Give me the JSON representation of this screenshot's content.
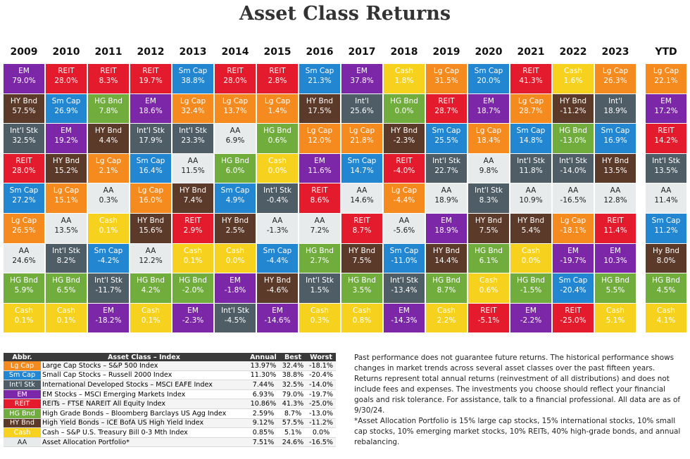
{
  "title": "Asset Class Returns",
  "colors": {
    "EM": {
      "bg": "#7b27a7",
      "fg": "#ffffff"
    },
    "Lg Cap": {
      "bg": "#f58a1f",
      "fg": "#ffffff"
    },
    "Sm Cap": {
      "bg": "#2386d1",
      "fg": "#ffffff"
    },
    "Int'l Stk": {
      "bg": "#4e5d66",
      "fg": "#ffffff"
    },
    "REIT": {
      "bg": "#e31b2d",
      "fg": "#ffffff"
    },
    "HG Bnd": {
      "bg": "#70ad3d",
      "fg": "#ffffff"
    },
    "HY Bnd": {
      "bg": "#5b3a2a",
      "fg": "#ffffff"
    },
    "Cash": {
      "bg": "#f6d21f",
      "fg": "#ffffff"
    },
    "AA": {
      "bg": "#e8ebec",
      "fg": "#222222"
    }
  },
  "chart_data": {
    "type": "table",
    "title": "Asset Class Returns",
    "columns": [
      "2009",
      "2010",
      "2011",
      "2012",
      "2013",
      "2014",
      "2015",
      "2016",
      "2017",
      "2018",
      "2019",
      "2020",
      "2021",
      "2022",
      "2023",
      "YTD"
    ],
    "grid": [
      [
        {
          "c": "EM",
          "v": "79.0%"
        },
        {
          "c": "HY Bnd",
          "v": "57.5%"
        },
        {
          "c": "Int'l Stk",
          "v": "32.5%"
        },
        {
          "c": "REIT",
          "v": "28.0%"
        },
        {
          "c": "Sm Cap",
          "v": "27.2%"
        },
        {
          "c": "Lg Cap",
          "v": "26.5%"
        },
        {
          "c": "AA",
          "v": "24.6%"
        },
        {
          "c": "HG Bnd",
          "v": "5.9%"
        },
        {
          "c": "Cash",
          "v": "0.1%"
        }
      ],
      [
        {
          "c": "REIT",
          "v": "28.0%"
        },
        {
          "c": "Sm Cap",
          "v": "26.9%"
        },
        {
          "c": "EM",
          "v": "19.2%"
        },
        {
          "c": "HY Bnd",
          "v": "15.2%"
        },
        {
          "c": "Lg Cap",
          "v": "15.1%"
        },
        {
          "c": "AA",
          "v": "13.5%"
        },
        {
          "c": "Int'l Stk",
          "v": "8.2%"
        },
        {
          "c": "HG Bnd",
          "v": "6.5%"
        },
        {
          "c": "Cash",
          "v": "0.1%"
        }
      ],
      [
        {
          "c": "REIT",
          "v": "8.3%"
        },
        {
          "c": "HG Bnd",
          "v": "7.8%"
        },
        {
          "c": "HY Bnd",
          "v": "4.4%"
        },
        {
          "c": "Lg Cap",
          "v": "2.1%"
        },
        {
          "c": "AA",
          "v": "0.3%"
        },
        {
          "c": "Cash",
          "v": "0.1%"
        },
        {
          "c": "Sm Cap",
          "v": "-4.2%"
        },
        {
          "c": "Int'l Stk",
          "v": "-11.7%"
        },
        {
          "c": "EM",
          "v": "-18.2%"
        }
      ],
      [
        {
          "c": "REIT",
          "v": "19.7%"
        },
        {
          "c": "EM",
          "v": "18.6%"
        },
        {
          "c": "Int'l Stk",
          "v": "17.9%"
        },
        {
          "c": "Sm Cap",
          "v": "16.4%"
        },
        {
          "c": "Lg Cap",
          "v": "16.0%"
        },
        {
          "c": "HY Bnd",
          "v": "15.6%"
        },
        {
          "c": "AA",
          "v": "12.2%"
        },
        {
          "c": "HG Bnd",
          "v": "4.2%"
        },
        {
          "c": "Cash",
          "v": "0.1%"
        }
      ],
      [
        {
          "c": "Sm Cap",
          "v": "38.8%"
        },
        {
          "c": "Lg Cap",
          "v": "32.4%"
        },
        {
          "c": "Int'l Stk",
          "v": "23.3%"
        },
        {
          "c": "AA",
          "v": "11.5%"
        },
        {
          "c": "HY Bnd",
          "v": "7.4%"
        },
        {
          "c": "REIT",
          "v": "2.9%"
        },
        {
          "c": "Cash",
          "v": "0.1%"
        },
        {
          "c": "HG Bnd",
          "v": "-2.0%"
        },
        {
          "c": "EM",
          "v": "-2.3%"
        }
      ],
      [
        {
          "c": "REIT",
          "v": "28.0%"
        },
        {
          "c": "Lg Cap",
          "v": "13.7%"
        },
        {
          "c": "AA",
          "v": "6.9%"
        },
        {
          "c": "HG Bnd",
          "v": "6.0%"
        },
        {
          "c": "Sm Cap",
          "v": "4.9%"
        },
        {
          "c": "HY Bnd",
          "v": "2.5%"
        },
        {
          "c": "Cash",
          "v": "0.0%"
        },
        {
          "c": "EM",
          "v": "-1.8%"
        },
        {
          "c": "Int'l Stk",
          "v": "-4.5%"
        }
      ],
      [
        {
          "c": "REIT",
          "v": "2.8%"
        },
        {
          "c": "Lg Cap",
          "v": "1.4%"
        },
        {
          "c": "HG Bnd",
          "v": "0.6%"
        },
        {
          "c": "Cash",
          "v": "0.0%"
        },
        {
          "c": "Int'l Stk",
          "v": "-0.4%"
        },
        {
          "c": "AA",
          "v": "-1.3%"
        },
        {
          "c": "Sm Cap",
          "v": "-4.4%"
        },
        {
          "c": "HY Bnd",
          "v": "-4.6%"
        },
        {
          "c": "EM",
          "v": "-14.6%"
        }
      ],
      [
        {
          "c": "Sm Cap",
          "v": "21.3%"
        },
        {
          "c": "HY Bnd",
          "v": "17.5%"
        },
        {
          "c": "Lg Cap",
          "v": "12.0%"
        },
        {
          "c": "EM",
          "v": "11.6%"
        },
        {
          "c": "REIT",
          "v": "8.6%"
        },
        {
          "c": "AA",
          "v": "7.2%"
        },
        {
          "c": "HG Bnd",
          "v": "2.7%"
        },
        {
          "c": "Int'l Stk",
          "v": "1.5%"
        },
        {
          "c": "Cash",
          "v": "0.3%"
        }
      ],
      [
        {
          "c": "EM",
          "v": "37.8%"
        },
        {
          "c": "Int'l",
          "v": "25.6%"
        },
        {
          "c": "Lg Cap",
          "v": "21.8%"
        },
        {
          "c": "Sm Cap",
          "v": "14.7%"
        },
        {
          "c": "AA",
          "v": "14.6%"
        },
        {
          "c": "REIT",
          "v": "8.7%"
        },
        {
          "c": "HY Bnd",
          "v": "7.5%"
        },
        {
          "c": "HG Bnd",
          "v": "3.5%"
        },
        {
          "c": "Cash",
          "v": "0.8%"
        }
      ],
      [
        {
          "c": "Cash",
          "v": "1.8%"
        },
        {
          "c": "HG Bnd",
          "v": "0.0%"
        },
        {
          "c": "HY Bnd",
          "v": "-2.3%"
        },
        {
          "c": "REIT",
          "v": "-4.0%"
        },
        {
          "c": "Lg Cap",
          "v": "-4.4%"
        },
        {
          "c": "AA",
          "v": "-5.6%"
        },
        {
          "c": "Sm Cap",
          "v": "-11.0%"
        },
        {
          "c": "Int'l Stk",
          "v": "-13.4%"
        },
        {
          "c": "EM",
          "v": "-14.3%"
        }
      ],
      [
        {
          "c": "Lg Cap",
          "v": "31.5%"
        },
        {
          "c": "REIT",
          "v": "28.7%"
        },
        {
          "c": "Sm Cap",
          "v": "25.5%"
        },
        {
          "c": "Int'l Stk",
          "v": "22.7%"
        },
        {
          "c": "AA",
          "v": "18.9%"
        },
        {
          "c": "EM",
          "v": "18.9%"
        },
        {
          "c": "HY Bnd",
          "v": "14.4%"
        },
        {
          "c": "HG Bnd",
          "v": "8.7%"
        },
        {
          "c": "Cash",
          "v": "2.2%"
        }
      ],
      [
        {
          "c": "Sm Cap",
          "v": "20.0%"
        },
        {
          "c": "EM",
          "v": "18.7%"
        },
        {
          "c": "Lg Cap",
          "v": "18.4%"
        },
        {
          "c": "AA",
          "v": "9.8%"
        },
        {
          "c": "Int'l Stk",
          "v": "8.3%"
        },
        {
          "c": "HY Bnd",
          "v": "7.5%"
        },
        {
          "c": "HG Bnd",
          "v": "6.1%"
        },
        {
          "c": "Cash",
          "v": "0.6%"
        },
        {
          "c": "REIT",
          "v": "-5.1%"
        }
      ],
      [
        {
          "c": "REIT",
          "v": "41.3%"
        },
        {
          "c": "Lg Cap",
          "v": "28.7%"
        },
        {
          "c": "Sm Cap",
          "v": "14.8%"
        },
        {
          "c": "Int'l Stk",
          "v": "11.8%"
        },
        {
          "c": "AA",
          "v": "10.9%"
        },
        {
          "c": "HY Bnd",
          "v": "5.4%"
        },
        {
          "c": "Cash",
          "v": "0.0%"
        },
        {
          "c": "HG Bnd",
          "v": "-1.5%"
        },
        {
          "c": "EM",
          "v": "-2.2%"
        }
      ],
      [
        {
          "c": "Cash",
          "v": "1.6%"
        },
        {
          "c": "HY Bnd",
          "v": "-11.2%"
        },
        {
          "c": "HG Bnd",
          "v": "-13.0%"
        },
        {
          "c": "Int'l Stk",
          "v": "-14.0%"
        },
        {
          "c": "AA",
          "v": "-16.5%"
        },
        {
          "c": "Lg Cap",
          "v": "-18.1%"
        },
        {
          "c": "EM",
          "v": "-19.7%"
        },
        {
          "c": "Sm Cap",
          "v": "-20.4%"
        },
        {
          "c": "REIT",
          "v": "-25.0%"
        }
      ],
      [
        {
          "c": "Lg Cap",
          "v": "26.3%"
        },
        {
          "c": "Int'l",
          "v": "18.9%"
        },
        {
          "c": "Sm Cap",
          "v": "16.9%"
        },
        {
          "c": "HY Bnd",
          "v": "13.5%"
        },
        {
          "c": "AA",
          "v": "12.8%"
        },
        {
          "c": "REIT",
          "v": "11.4%"
        },
        {
          "c": "EM",
          "v": "10.3%"
        },
        {
          "c": "HG Bnd",
          "v": "5.5%"
        },
        {
          "c": "Cash",
          "v": "5.1%"
        }
      ],
      [
        {
          "c": "Lg Cap",
          "v": "22.1%"
        },
        {
          "c": "EM",
          "v": "17.2%"
        },
        {
          "c": "REIT",
          "v": "14.2%"
        },
        {
          "c": "Int'l Stk",
          "v": "13.5%"
        },
        {
          "c": "AA",
          "v": "11.4%"
        },
        {
          "c": "Sm Cap",
          "v": "11.2%"
        },
        {
          "c": "Hy Bnd",
          "v": "8.0%"
        },
        {
          "c": "HG Bnd",
          "v": "4.5%"
        },
        {
          "c": "Cash",
          "v": "4.1%"
        }
      ]
    ]
  },
  "legend_table": {
    "headers": [
      "Abbr.",
      "Asset Class – Index",
      "Annual",
      "Best",
      "Worst"
    ],
    "rows": [
      {
        "abbr": "Lg Cap",
        "name": "Large Cap Stocks – S&P 500 Index",
        "annual": "13.97%",
        "best": "32.4%",
        "worst": "-18.1%"
      },
      {
        "abbr": "Sm Cap",
        "name": "Small Cap Stocks – Russell 2000 Index",
        "annual": "11.30%",
        "best": "38.8%",
        "worst": "-20.4%"
      },
      {
        "abbr": "Int'l Stk",
        "name": "International Developed Stocks – MSCI EAFE Index",
        "annual": "7.44%",
        "best": "32.5%",
        "worst": "-14.0%"
      },
      {
        "abbr": "EM",
        "name": "EM Stocks – MSCI Emerging Markets Index",
        "annual": "6.93%",
        "best": "79.0%",
        "worst": "-19.7%"
      },
      {
        "abbr": "REIT",
        "name": "REITs – FTSE NAREIT All Equity Index",
        "annual": "10.86%",
        "best": "41.3%",
        "worst": "-25.0%"
      },
      {
        "abbr": "HG Bnd",
        "name": "High Grade Bonds – Bloomberg Barclays US Agg Index",
        "annual": "2.59%",
        "best": "8.7%",
        "worst": "-13.0%"
      },
      {
        "abbr": "HY Bnd",
        "name": "High Yield Bonds – ICE BofA US High Yield Index",
        "annual": "9.12%",
        "best": "57.5%",
        "worst": "-11.2%"
      },
      {
        "abbr": "Cash",
        "name": "Cash – S&P U.S. Treasury Bill 0-3 Mth Index",
        "annual": "0.85%",
        "best": "5.1%",
        "worst": "0.0%"
      },
      {
        "abbr": "AA",
        "name": "Asset Allocation Portfolio*",
        "annual": "7.51%",
        "best": "24.6%",
        "worst": "-16.5%"
      }
    ]
  },
  "notes": {
    "disclaimer": "Past performance does not guarantee future returns. The historical performance shows changes in market trends across several asset classes over the past fifteen years. Returns represent total annual returns (reinvestment of all distributions) and does not include fees and expenses. The investments you choose should reflect your financial goals and risk tolerance. For assistance, talk to a financial professional. All data are as of 9/30/24.",
    "footnote": "*Asset Allocation Portfolio is 15% large cap stocks, 15% international stocks, 10% small cap stocks, 10% emerging market stocks, 10% REITs, 40% high-grade bonds, and annual rebalancing."
  }
}
